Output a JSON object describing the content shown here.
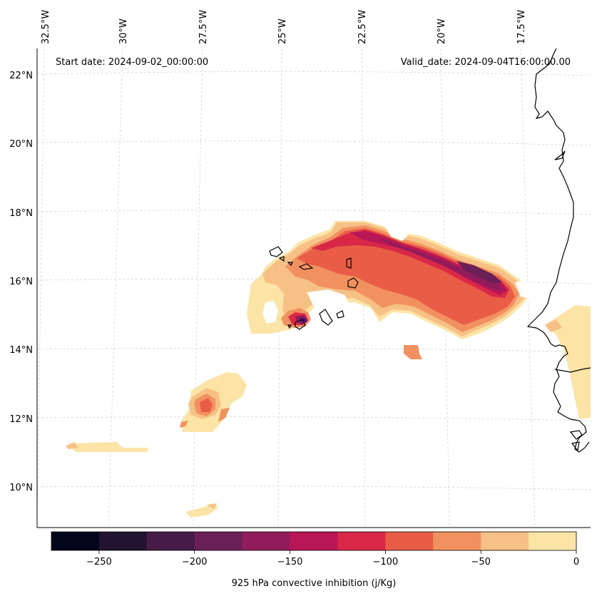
{
  "map": {
    "start_date": "Start date: 2024-09-02_00:00:00",
    "valid_date": "Valid_date: 2024-09-04T16:00:00.00",
    "lon_labels": [
      "32.5°W",
      "30°W",
      "27.5°W",
      "25°W",
      "22.5°W",
      "20°W",
      "17.5°W"
    ],
    "lat_labels": [
      "22°N",
      "20°N",
      "18°N",
      "16°N",
      "14°N",
      "12°N",
      "10°N"
    ]
  },
  "colorbar": {
    "title": "925 hPa convective inhibition (j/Kg)",
    "ticks": [
      "−250",
      "−200",
      "−150",
      "−100",
      "−50",
      "0"
    ],
    "colors": [
      "#000004",
      "#1d1147",
      "#51127c",
      "#822681",
      "#b73779",
      "#e75263",
      "#fc8961",
      "#fec287",
      "#fcfdbf"
    ]
  },
  "chart_data": {
    "type": "map",
    "title": "925 hPa convective inhibition (j/Kg)",
    "variable": "925 hPa convective inhibition",
    "units": "j/Kg",
    "start_date": "2024-09-02_00:00:00",
    "valid_date": "2024-09-04T16:00:00.00",
    "levels": [
      -275,
      -250,
      -225,
      -200,
      -175,
      -150,
      -125,
      -100,
      -75,
      -50,
      -25,
      0
    ],
    "level_colors": [
      "#03051a",
      "#221331",
      "#451c47",
      "#6a1f56",
      "#921c5b",
      "#b91657",
      "#d92847",
      "#e95d47",
      "#f1915f",
      "#f7c186",
      "#fbe4a6"
    ],
    "colorbar_ticks": [
      -250,
      -200,
      -150,
      -100,
      -50,
      0
    ],
    "lon_ticks": [
      -32.5,
      -30,
      -27.5,
      -25,
      -22.5,
      -20,
      -17.5
    ],
    "lat_ticks": [
      22,
      20,
      18,
      16,
      14,
      12,
      10
    ]
  }
}
